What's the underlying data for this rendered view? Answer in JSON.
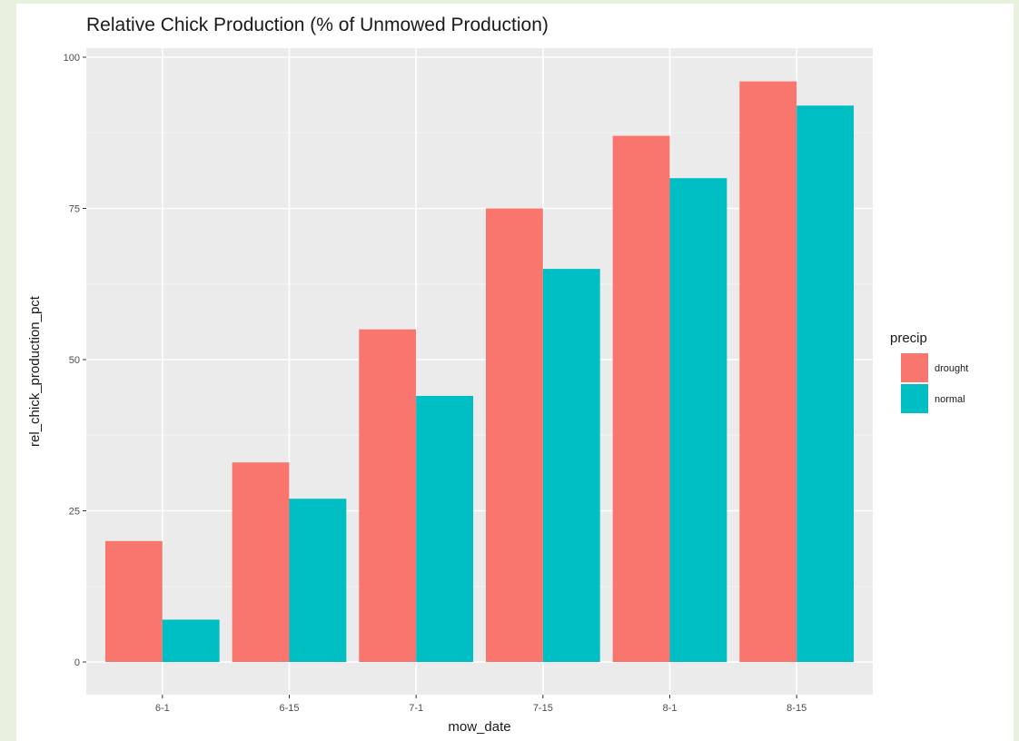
{
  "chart_data": {
    "type": "bar",
    "title": "Relative Chick Production (% of Unmowed Production)",
    "xlabel": "mow_date",
    "ylabel": "rel_chick_production_pct",
    "categories": [
      "6-1",
      "6-15",
      "7-1",
      "7-15",
      "8-1",
      "8-15"
    ],
    "series": [
      {
        "name": "drought",
        "color": "#f8766d",
        "values": [
          20,
          33,
          55,
          75,
          87,
          96
        ]
      },
      {
        "name": "normal",
        "color": "#00bfc4",
        "values": [
          7,
          27,
          44,
          65,
          80,
          92
        ]
      }
    ],
    "ylim": [
      0,
      100
    ],
    "yticks": [
      0,
      25,
      50,
      75,
      100
    ],
    "legend": {
      "title": "precip",
      "position": "right"
    },
    "grid": true,
    "panel_background": "#ebebeb"
  }
}
